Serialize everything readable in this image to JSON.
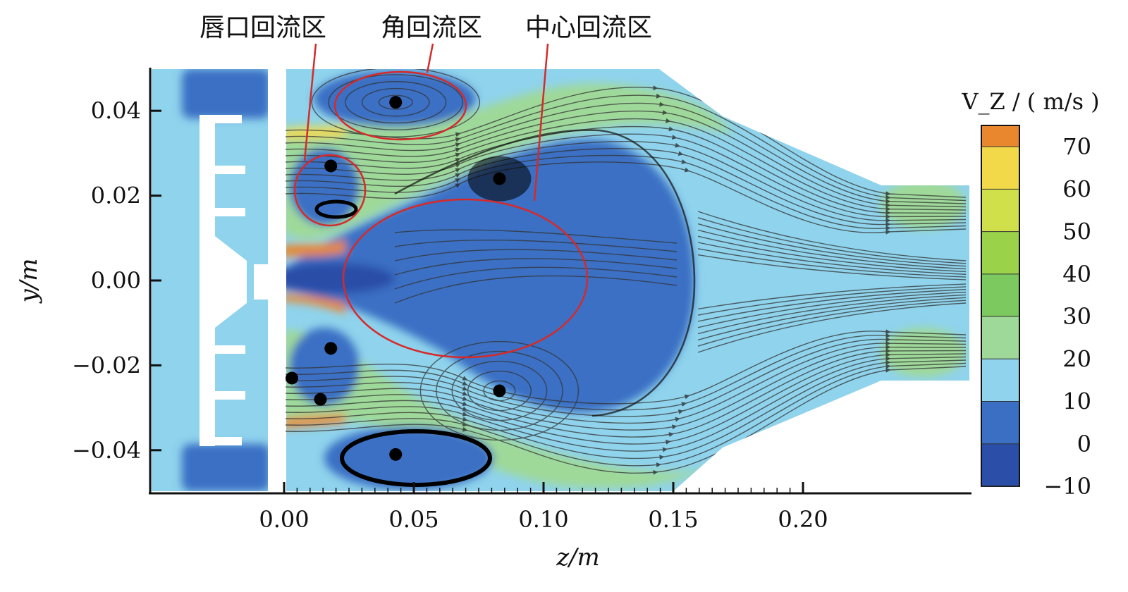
{
  "chart_data": {
    "type": "heatmap",
    "title": "",
    "xlabel": "z/m",
    "ylabel": "y/m",
    "xlim": [
      -0.04,
      0.2
    ],
    "ylim": [
      -0.05,
      0.05
    ],
    "x_ticks": [
      "0.00",
      "0.05",
      "0.10",
      "0.15",
      "0.20"
    ],
    "x_tick_values": [
      0.0,
      0.05,
      0.1,
      0.15,
      0.2
    ],
    "y_ticks": [
      "0.04",
      "0.02",
      "0.00",
      "−0.02",
      "−0.04"
    ],
    "y_tick_values": [
      0.04,
      0.02,
      0.0,
      -0.02,
      -0.04
    ],
    "grid": false,
    "colorbar": {
      "title": "V_Z / ( m/s )",
      "labels": [
        "70",
        "60",
        "50",
        "40",
        "30",
        "20",
        "10",
        "0",
        "−10"
      ],
      "levels": [
        -10,
        0,
        10,
        20,
        30,
        40,
        50,
        60,
        70,
        75
      ],
      "colors": [
        "#2b4ea8",
        "#3a6fc4",
        "#8fd3ec",
        "#9fd99a",
        "#7cc95f",
        "#9ad24a",
        "#cfe04a",
        "#f2d94a",
        "#e9872e",
        "#d8332a"
      ]
    },
    "annotations": [
      {
        "label": "唇口回流区",
        "z": 0.012,
        "y": 0.024
      },
      {
        "label": "角回流区",
        "z": 0.038,
        "y": 0.04
      },
      {
        "label": "中心回流区",
        "z": 0.072,
        "y": 0.002
      }
    ],
    "vortex_centers": [
      {
        "z": 0.043,
        "y": 0.042
      },
      {
        "z": 0.018,
        "y": 0.027
      },
      {
        "z": 0.018,
        "y": -0.016
      },
      {
        "z": 0.003,
        "y": -0.023
      },
      {
        "z": 0.014,
        "y": -0.028
      },
      {
        "z": 0.083,
        "y": 0.024
      },
      {
        "z": 0.083,
        "y": -0.026
      },
      {
        "z": 0.043,
        "y": -0.041
      }
    ]
  }
}
